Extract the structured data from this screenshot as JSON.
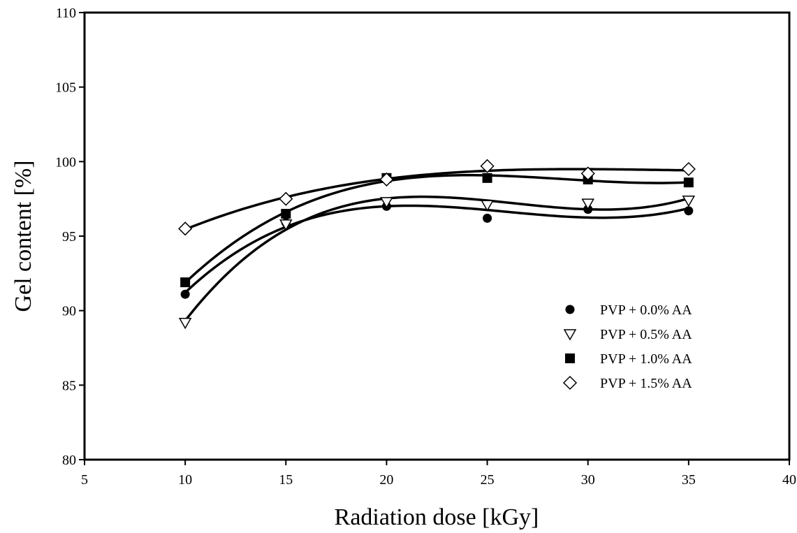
{
  "chart_data": {
    "type": "scatter",
    "title": "",
    "xlabel": "Radiation dose [kGy]",
    "ylabel": "Gel content [%]",
    "xlim": [
      5,
      40
    ],
    "ylim": [
      80,
      110
    ],
    "xticks": [
      5,
      10,
      15,
      20,
      25,
      30,
      35,
      40
    ],
    "yticks": [
      80,
      85,
      90,
      95,
      100,
      105,
      110
    ],
    "grid": false,
    "legend_position": "right",
    "x": [
      10,
      15,
      20,
      25,
      30,
      35
    ],
    "series": [
      {
        "name": "PVP + 0.0% AA",
        "marker": "filled-circle",
        "color": "#000000",
        "values": [
          91.1,
          95.9,
          97.0,
          96.2,
          96.8,
          96.7
        ]
      },
      {
        "name": "PVP + 0.5% AA",
        "marker": "open-triangle-down",
        "color": "#000000",
        "values": [
          89.2,
          95.8,
          97.3,
          97.1,
          97.2,
          97.4
        ]
      },
      {
        "name": "PVP + 1.0% AA",
        "marker": "filled-square",
        "color": "#000000",
        "values": [
          91.9,
          96.5,
          98.9,
          98.9,
          98.8,
          98.6
        ]
      },
      {
        "name": "PVP + 1.5% AA",
        "marker": "open-diamond",
        "color": "#000000",
        "values": [
          95.5,
          97.5,
          98.8,
          99.7,
          99.2,
          99.5
        ]
      }
    ]
  }
}
